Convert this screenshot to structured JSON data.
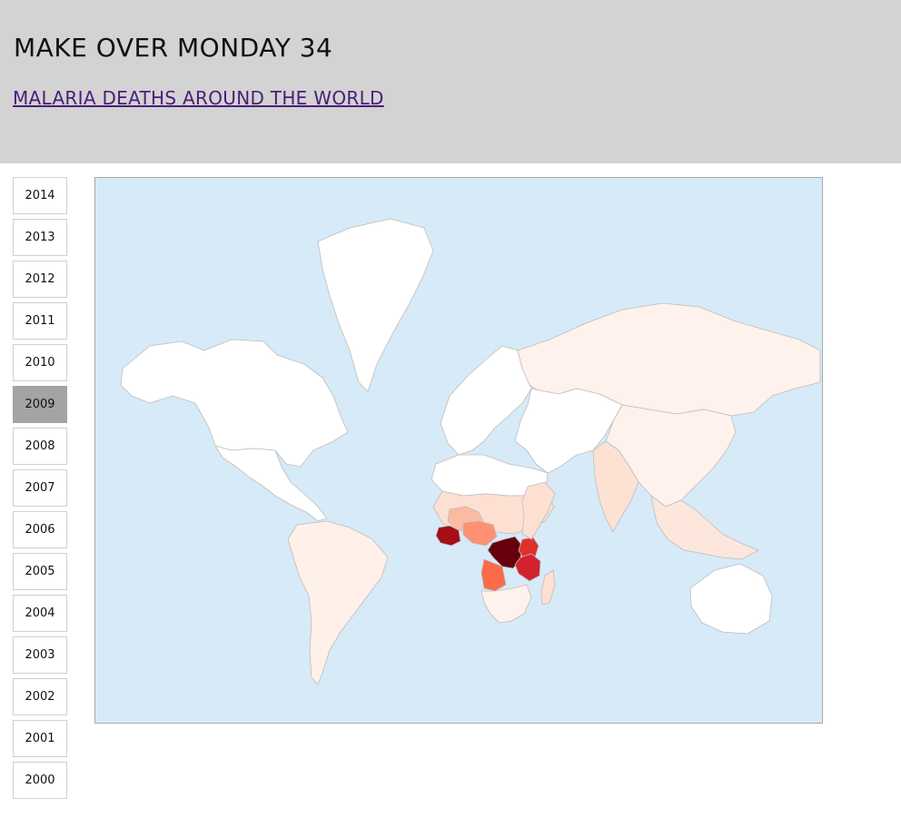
{
  "header": {
    "title": "MAKE OVER MONDAY 34",
    "subtitle": "MALARIA DEATHS AROUND THE WORLD"
  },
  "years": [
    "2014",
    "2013",
    "2012",
    "2011",
    "2010",
    "2009",
    "2008",
    "2007",
    "2006",
    "2005",
    "2004",
    "2003",
    "2002",
    "2001",
    "2000"
  ],
  "selected_year": "2009",
  "map": {
    "ocean_color": "#d7eaf8",
    "no_data_color": "#ffffff",
    "border_color": "#bdbdbd",
    "color_scale": [
      "#fff5f0",
      "#fde0d2",
      "#fcbba1",
      "#fc9272",
      "#fb6a4a",
      "#e0302a",
      "#a50f15",
      "#67000d"
    ],
    "regions": [
      {
        "name": "Alaska / North America",
        "fill": "#ffffff"
      },
      {
        "name": "Greenland",
        "fill": "#ffffff"
      },
      {
        "name": "Mexico & Central America",
        "fill": "#ffffff"
      },
      {
        "name": "South America",
        "fill": "#fff0ea"
      },
      {
        "name": "Europe",
        "fill": "#ffffff"
      },
      {
        "name": "Russia",
        "fill": "#fff1ec"
      },
      {
        "name": "Middle East & Central Asia",
        "fill": "#ffffff"
      },
      {
        "name": "China & East Asia",
        "fill": "#fff1ec"
      },
      {
        "name": "India",
        "fill": "#fde2d4"
      },
      {
        "name": "Southeast Asia",
        "fill": "#fde6dc"
      },
      {
        "name": "Australia",
        "fill": "#ffffff"
      },
      {
        "name": "North Africa",
        "fill": "#ffffff"
      },
      {
        "name": "Sahel",
        "fill": "#fde0d2"
      },
      {
        "name": "Mali / Burkina Faso",
        "fill": "#fcbba1"
      },
      {
        "name": "Nigeria",
        "fill": "#fc9272"
      },
      {
        "name": "Cote d'Ivoire / Ghana",
        "fill": "#a50f15"
      },
      {
        "name": "DR Congo",
        "fill": "#67000d"
      },
      {
        "name": "Uganda",
        "fill": "#e0302a"
      },
      {
        "name": "Tanzania",
        "fill": "#d2222d"
      },
      {
        "name": "Angola",
        "fill": "#fb6a4a"
      },
      {
        "name": "Southern Africa",
        "fill": "#fff1ec"
      },
      {
        "name": "East Africa",
        "fill": "#fde0d2"
      },
      {
        "name": "Madagascar",
        "fill": "#fde0d2"
      }
    ]
  }
}
